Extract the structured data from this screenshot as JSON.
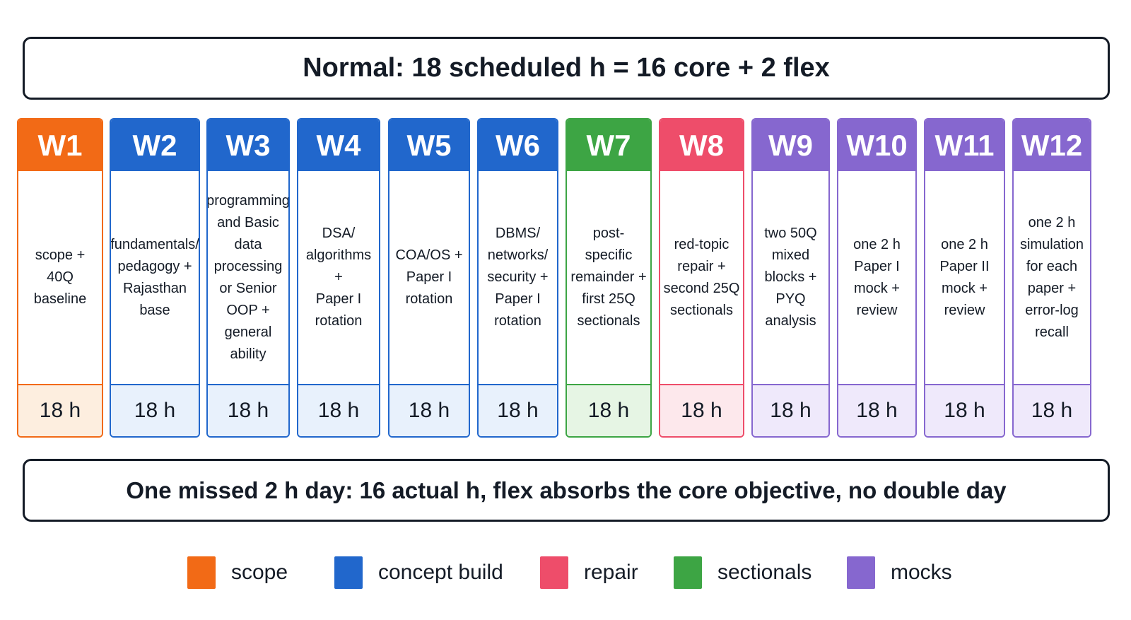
{
  "top_banner": "Normal: 18 scheduled h = 16 core + 2 flex",
  "bottom_banner": "One missed 2 h day: 16 actual h, flex absorbs the core objective, no double day",
  "colors": {
    "scope": "#f26a16",
    "concept_build": "#2167cc",
    "sectionals": "#3da544",
    "repair": "#ee4d6a",
    "mocks": "#8667cf"
  },
  "weeks": [
    {
      "label": "W1",
      "category": "scope",
      "lines": [
        "scope +",
        "40Q",
        "baseline"
      ],
      "hours": "18 h"
    },
    {
      "label": "W2",
      "category": "concept_build",
      "lines": [
        "fundamentals/",
        "pedagogy +",
        "Rajasthan",
        "base"
      ],
      "hours": "18 h"
    },
    {
      "label": "W3",
      "category": "concept_build",
      "lines": [
        "programming",
        "and Basic",
        "data",
        "processing",
        "or Senior",
        "OOP +",
        "general",
        "ability"
      ],
      "hours": "18 h"
    },
    {
      "label": "W4",
      "category": "concept_build",
      "lines": [
        "DSA/",
        "algorithms +",
        "Paper I",
        "rotation"
      ],
      "hours": "18 h"
    },
    {
      "label": "W5",
      "category": "concept_build",
      "lines": [
        "COA/OS +",
        "Paper I",
        "rotation"
      ],
      "hours": "18 h"
    },
    {
      "label": "W6",
      "category": "concept_build",
      "lines": [
        "DBMS/",
        "networks/",
        "security +",
        "Paper I",
        "rotation"
      ],
      "hours": "18 h"
    },
    {
      "label": "W7",
      "category": "sectionals",
      "lines": [
        "post-specific",
        "remainder +",
        "first 25Q",
        "sectionals"
      ],
      "hours": "18 h"
    },
    {
      "label": "W8",
      "category": "repair",
      "lines": [
        "red-topic",
        "repair +",
        "second 25Q",
        "sectionals"
      ],
      "hours": "18 h"
    },
    {
      "label": "W9",
      "category": "mocks",
      "lines": [
        "two 50Q",
        "mixed",
        "blocks +",
        "PYQ",
        "analysis"
      ],
      "hours": "18 h"
    },
    {
      "label": "W10",
      "category": "mocks",
      "lines": [
        "one 2 h",
        "Paper I",
        "mock +",
        "review"
      ],
      "hours": "18 h"
    },
    {
      "label": "W11",
      "category": "mocks",
      "lines": [
        "one 2 h",
        "Paper II",
        "mock +",
        "review"
      ],
      "hours": "18 h"
    },
    {
      "label": "W12",
      "category": "mocks",
      "lines": [
        "one 2 h",
        "simulation",
        "for each",
        "paper +",
        "error-log",
        "recall"
      ],
      "hours": "18 h"
    }
  ],
  "legend": [
    {
      "key": "scope",
      "label": "scope"
    },
    {
      "key": "concept_build",
      "label": "concept build"
    },
    {
      "key": "repair",
      "label": "repair"
    },
    {
      "key": "sectionals",
      "label": "sectionals"
    },
    {
      "key": "mocks",
      "label": "mocks"
    }
  ]
}
